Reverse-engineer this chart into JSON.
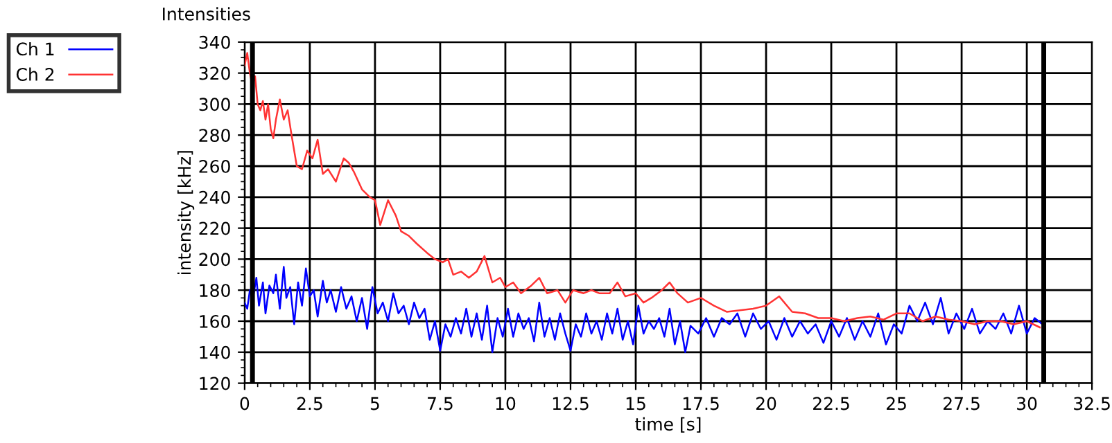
{
  "chart_data": {
    "type": "line",
    "title": "Intensities",
    "xlabel": "time [s]",
    "ylabel": "intensity [kHz]",
    "xlim": [
      0,
      32.5
    ],
    "ylim": [
      120,
      340
    ],
    "xticks": [
      0,
      2.5,
      5,
      7.5,
      10,
      12.5,
      15,
      17.5,
      20,
      22.5,
      25,
      27.5,
      30,
      32.5
    ],
    "yticks": [
      120,
      140,
      160,
      180,
      200,
      220,
      240,
      260,
      280,
      300,
      320,
      340
    ],
    "grid": true,
    "legend": "top left",
    "marker": "none",
    "line_style": "solid",
    "ref_lines": [
      {
        "axis": "x",
        "value": 0.3,
        "color": "#000000"
      },
      {
        "axis": "x",
        "value": 30.65,
        "color": "#000000"
      }
    ],
    "series": [
      {
        "name": "Ch 1",
        "color": "#0000ff",
        "x": [
          0,
          0.1,
          0.2,
          0.35,
          0.45,
          0.55,
          0.7,
          0.8,
          0.95,
          1.1,
          1.2,
          1.35,
          1.5,
          1.6,
          1.75,
          1.9,
          2.05,
          2.2,
          2.35,
          2.5,
          2.65,
          2.8,
          3.0,
          3.15,
          3.3,
          3.5,
          3.7,
          3.9,
          4.1,
          4.3,
          4.5,
          4.7,
          4.9,
          5.1,
          5.3,
          5.5,
          5.7,
          5.9,
          6.1,
          6.3,
          6.5,
          6.7,
          6.9,
          7.1,
          7.3,
          7.5,
          7.7,
          7.9,
          8.1,
          8.3,
          8.5,
          8.7,
          8.9,
          9.1,
          9.3,
          9.5,
          9.7,
          9.9,
          10.1,
          10.3,
          10.5,
          10.7,
          10.9,
          11.1,
          11.3,
          11.5,
          11.7,
          11.9,
          12.1,
          12.3,
          12.5,
          12.7,
          12.9,
          13.1,
          13.3,
          13.5,
          13.7,
          13.9,
          14.1,
          14.3,
          14.5,
          14.7,
          14.9,
          15.1,
          15.3,
          15.5,
          15.7,
          15.9,
          16.1,
          16.3,
          16.5,
          16.7,
          16.9,
          17.1,
          17.4,
          17.7,
          18.0,
          18.3,
          18.6,
          18.9,
          19.2,
          19.5,
          19.8,
          20.1,
          20.4,
          20.7,
          21.0,
          21.3,
          21.6,
          21.9,
          22.2,
          22.5,
          22.8,
          23.1,
          23.4,
          23.7,
          24.0,
          24.3,
          24.6,
          24.9,
          25.2,
          25.5,
          25.8,
          26.1,
          26.4,
          26.7,
          27.0,
          27.3,
          27.6,
          27.9,
          28.2,
          28.5,
          28.8,
          29.1,
          29.4,
          29.7,
          30.0,
          30.3,
          30.6
        ],
        "values": [
          172,
          168,
          180,
          178,
          188,
          170,
          185,
          165,
          183,
          178,
          190,
          168,
          195,
          175,
          182,
          158,
          185,
          170,
          194,
          176,
          180,
          163,
          186,
          172,
          180,
          166,
          182,
          168,
          176,
          160,
          175,
          155,
          182,
          165,
          172,
          160,
          178,
          165,
          170,
          158,
          172,
          162,
          168,
          148,
          160,
          141,
          158,
          150,
          162,
          152,
          168,
          150,
          165,
          148,
          170,
          140,
          162,
          150,
          168,
          150,
          165,
          155,
          162,
          147,
          172,
          150,
          162,
          148,
          165,
          152,
          141,
          158,
          150,
          165,
          152,
          160,
          148,
          165,
          152,
          168,
          148,
          160,
          145,
          170,
          152,
          160,
          155,
          162,
          150,
          168,
          145,
          160,
          140,
          157,
          152,
          162,
          150,
          162,
          158,
          165,
          150,
          165,
          155,
          160,
          148,
          162,
          150,
          160,
          152,
          158,
          146,
          160,
          150,
          162,
          148,
          160,
          150,
          165,
          145,
          158,
          152,
          170,
          160,
          172,
          158,
          175,
          152,
          165,
          155,
          168,
          152,
          160,
          155,
          165,
          152,
          170,
          152,
          162,
          158
        ]
      },
      {
        "name": "Ch 2",
        "color": "#ff3333",
        "x": [
          0,
          0.1,
          0.2,
          0.3,
          0.4,
          0.5,
          0.6,
          0.7,
          0.8,
          0.9,
          1.0,
          1.1,
          1.2,
          1.35,
          1.5,
          1.65,
          1.8,
          2.0,
          2.2,
          2.4,
          2.6,
          2.8,
          3.0,
          3.2,
          3.5,
          3.8,
          4.0,
          4.2,
          4.5,
          4.8,
          5.0,
          5.2,
          5.5,
          5.8,
          6.0,
          6.3,
          6.6,
          7.0,
          7.3,
          7.6,
          7.8,
          8.0,
          8.3,
          8.6,
          8.9,
          9.2,
          9.5,
          9.8,
          10.0,
          10.3,
          10.6,
          11.0,
          11.3,
          11.6,
          12.0,
          12.3,
          12.6,
          13.0,
          13.3,
          13.6,
          14.0,
          14.3,
          14.6,
          15.0,
          15.3,
          15.6,
          16.0,
          16.3,
          16.6,
          17.0,
          17.5,
          18.0,
          18.5,
          19.0,
          19.5,
          20.0,
          20.5,
          21.0,
          21.5,
          22.0,
          22.5,
          23.0,
          23.5,
          24.0,
          24.5,
          25.0,
          25.5,
          26.0,
          26.5,
          27.0,
          27.5,
          28.0,
          28.5,
          29.0,
          29.5,
          30.0,
          30.5
        ],
        "values": [
          325,
          333,
          320,
          312,
          318,
          300,
          296,
          302,
          290,
          300,
          284,
          278,
          290,
          303,
          290,
          296,
          280,
          260,
          258,
          270,
          265,
          277,
          255,
          258,
          250,
          265,
          262,
          256,
          245,
          240,
          238,
          222,
          238,
          228,
          218,
          215,
          210,
          204,
          200,
          198,
          200,
          190,
          192,
          188,
          192,
          202,
          185,
          188,
          182,
          185,
          178,
          183,
          188,
          178,
          180,
          172,
          180,
          178,
          180,
          178,
          178,
          185,
          176,
          178,
          172,
          175,
          180,
          185,
          178,
          172,
          175,
          170,
          166,
          167,
          168,
          170,
          176,
          166,
          165,
          162,
          162,
          160,
          162,
          163,
          161,
          165,
          165,
          160,
          163,
          161,
          160,
          158,
          160,
          160,
          158,
          160,
          156
        ]
      }
    ]
  }
}
